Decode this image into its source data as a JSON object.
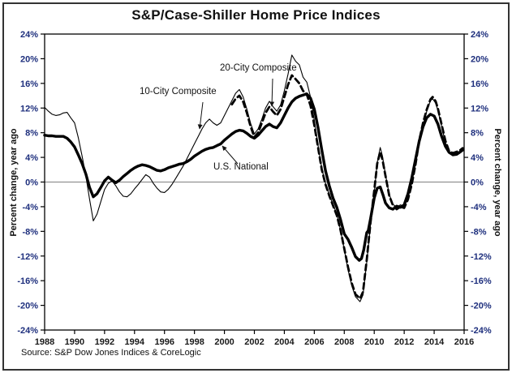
{
  "source": {
    "text": "Source: S&P Dow Jones Indices & CoreLogic"
  },
  "colors": {
    "line": "#000000",
    "zero_line": "#808080",
    "axis": "#000000",
    "y_tick_label": "#1e2f7d",
    "x_tick_label": "#1a1a1a",
    "frame_border": "#333333"
  },
  "chart_data": {
    "type": "line",
    "title": "S&P/Case-Shiller Home Price Indices",
    "x_axis": {
      "min": 1988,
      "max": 2016,
      "tick_step": 2,
      "tick_labels": [
        "1988",
        "1990",
        "1992",
        "1994",
        "1996",
        "1998",
        "2000",
        "2002",
        "2004",
        "2006",
        "2008",
        "2010",
        "2012",
        "2014",
        "2016"
      ]
    },
    "y_axis": {
      "label": "Percent change, year ago",
      "min": -24,
      "max": 24,
      "tick_step": 4,
      "tick_labels": [
        "24%",
        "20%",
        "16%",
        "12%",
        "8%",
        "4%",
        "0%",
        "-4%",
        "-8%",
        "-12%",
        "-16%",
        "-20%",
        "-24%"
      ],
      "mirrored_right": true
    },
    "zero_line": true,
    "grid": false,
    "legend": "inline-annotations",
    "series": [
      {
        "name": "10-City Composite",
        "style": "thin-solid",
        "points": [
          [
            1988.0,
            12.1
          ],
          [
            1988.25,
            11.5
          ],
          [
            1988.5,
            11.0
          ],
          [
            1988.75,
            10.8
          ],
          [
            1989.0,
            10.9
          ],
          [
            1989.25,
            11.2
          ],
          [
            1989.5,
            11.3
          ],
          [
            1989.75,
            10.4
          ],
          [
            1990.0,
            9.6
          ],
          [
            1990.25,
            7.2
          ],
          [
            1990.5,
            4.2
          ],
          [
            1990.75,
            1.0
          ],
          [
            1991.0,
            -2.8
          ],
          [
            1991.25,
            -6.3
          ],
          [
            1991.5,
            -5.2
          ],
          [
            1991.75,
            -3.2
          ],
          [
            1992.0,
            -1.2
          ],
          [
            1992.25,
            -0.2
          ],
          [
            1992.5,
            0.2
          ],
          [
            1992.75,
            -0.6
          ],
          [
            1993.0,
            -1.6
          ],
          [
            1993.25,
            -2.3
          ],
          [
            1993.5,
            -2.4
          ],
          [
            1993.75,
            -1.9
          ],
          [
            1994.0,
            -1.1
          ],
          [
            1994.25,
            -0.4
          ],
          [
            1994.5,
            0.4
          ],
          [
            1994.75,
            1.2
          ],
          [
            1995.0,
            0.8
          ],
          [
            1995.25,
            -0.2
          ],
          [
            1995.5,
            -1.0
          ],
          [
            1995.75,
            -1.6
          ],
          [
            1996.0,
            -1.7
          ],
          [
            1996.25,
            -1.2
          ],
          [
            1996.5,
            -0.4
          ],
          [
            1996.75,
            0.6
          ],
          [
            1997.0,
            1.6
          ],
          [
            1997.25,
            2.6
          ],
          [
            1997.5,
            3.8
          ],
          [
            1997.75,
            5.0
          ],
          [
            1998.0,
            6.2
          ],
          [
            1998.25,
            7.4
          ],
          [
            1998.5,
            8.6
          ],
          [
            1998.75,
            9.6
          ],
          [
            1999.0,
            10.2
          ],
          [
            1999.25,
            9.6
          ],
          [
            1999.5,
            9.2
          ],
          [
            1999.75,
            9.6
          ],
          [
            2000.0,
            10.8
          ],
          [
            2000.25,
            12.0
          ],
          [
            2000.5,
            13.2
          ],
          [
            2000.75,
            14.4
          ],
          [
            2001.0,
            15.0
          ],
          [
            2001.25,
            13.8
          ],
          [
            2001.5,
            11.8
          ],
          [
            2001.75,
            9.5
          ],
          [
            2002.0,
            7.8
          ],
          [
            2002.25,
            8.6
          ],
          [
            2002.5,
            10.2
          ],
          [
            2002.75,
            12.0
          ],
          [
            2003.0,
            13.1
          ],
          [
            2003.25,
            12.2
          ],
          [
            2003.5,
            11.5
          ],
          [
            2003.75,
            12.5
          ],
          [
            2004.0,
            14.8
          ],
          [
            2004.25,
            17.5
          ],
          [
            2004.5,
            20.6
          ],
          [
            2004.75,
            19.6
          ],
          [
            2005.0,
            19.0
          ],
          [
            2005.25,
            17.0
          ],
          [
            2005.5,
            16.2
          ],
          [
            2005.75,
            13.8
          ],
          [
            2006.0,
            10.0
          ],
          [
            2006.25,
            6.0
          ],
          [
            2006.5,
            2.2
          ],
          [
            2006.75,
            -0.2
          ],
          [
            2007.0,
            -2.0
          ],
          [
            2007.25,
            -3.6
          ],
          [
            2007.5,
            -5.2
          ],
          [
            2007.75,
            -7.8
          ],
          [
            2008.0,
            -11.0
          ],
          [
            2008.25,
            -14.2
          ],
          [
            2008.5,
            -16.8
          ],
          [
            2008.75,
            -18.6
          ],
          [
            2009.05,
            -19.4
          ],
          [
            2009.25,
            -18.3
          ],
          [
            2009.5,
            -13.0
          ],
          [
            2009.75,
            -7.0
          ],
          [
            2010.0,
            -1.8
          ],
          [
            2010.2,
            3.2
          ],
          [
            2010.4,
            5.6
          ],
          [
            2010.55,
            4.2
          ],
          [
            2010.75,
            1.2
          ],
          [
            2011.0,
            -2.0
          ],
          [
            2011.25,
            -3.6
          ],
          [
            2011.5,
            -4.1
          ],
          [
            2011.75,
            -3.7
          ],
          [
            2012.0,
            -4.0
          ],
          [
            2012.25,
            -2.6
          ],
          [
            2012.5,
            -0.2
          ],
          [
            2012.75,
            3.0
          ],
          [
            2013.0,
            6.5
          ],
          [
            2013.25,
            9.2
          ],
          [
            2013.5,
            11.4
          ],
          [
            2013.75,
            13.2
          ],
          [
            2013.9,
            13.5
          ],
          [
            2014.1,
            12.8
          ],
          [
            2014.25,
            11.6
          ],
          [
            2014.5,
            9.0
          ],
          [
            2014.75,
            6.4
          ],
          [
            2015.0,
            4.8
          ],
          [
            2015.25,
            4.4
          ],
          [
            2015.5,
            4.6
          ],
          [
            2015.75,
            4.9
          ],
          [
            2015.9,
            5.3
          ]
        ]
      },
      {
        "name": "20-City Composite",
        "style": "thick-dashed",
        "points": [
          [
            2000.5,
            12.6
          ],
          [
            2000.75,
            13.5
          ],
          [
            2001.0,
            14.0
          ],
          [
            2001.25,
            13.0
          ],
          [
            2001.5,
            11.2
          ],
          [
            2001.75,
            9.0
          ],
          [
            2002.0,
            7.3
          ],
          [
            2002.25,
            8.0
          ],
          [
            2002.5,
            9.6
          ],
          [
            2002.75,
            11.2
          ],
          [
            2003.0,
            12.2
          ],
          [
            2003.25,
            11.4
          ],
          [
            2003.5,
            10.8
          ],
          [
            2003.75,
            11.8
          ],
          [
            2004.0,
            13.8
          ],
          [
            2004.25,
            15.8
          ],
          [
            2004.5,
            17.3
          ],
          [
            2004.75,
            16.7
          ],
          [
            2005.0,
            16.0
          ],
          [
            2005.25,
            14.8
          ],
          [
            2005.5,
            14.2
          ],
          [
            2005.75,
            12.4
          ],
          [
            2006.0,
            9.2
          ],
          [
            2006.25,
            5.6
          ],
          [
            2006.5,
            2.0
          ],
          [
            2006.75,
            -0.4
          ],
          [
            2007.0,
            -2.2
          ],
          [
            2007.25,
            -3.8
          ],
          [
            2007.5,
            -5.4
          ],
          [
            2007.75,
            -7.8
          ],
          [
            2008.0,
            -10.8
          ],
          [
            2008.25,
            -13.8
          ],
          [
            2008.5,
            -16.4
          ],
          [
            2008.75,
            -18.2
          ],
          [
            2009.05,
            -18.9
          ],
          [
            2009.25,
            -17.8
          ],
          [
            2009.5,
            -12.6
          ],
          [
            2009.75,
            -6.6
          ],
          [
            2010.0,
            -1.4
          ],
          [
            2010.2,
            3.0
          ],
          [
            2010.4,
            4.9
          ],
          [
            2010.55,
            3.6
          ],
          [
            2010.75,
            1.0
          ],
          [
            2011.0,
            -2.2
          ],
          [
            2011.25,
            -3.8
          ],
          [
            2011.5,
            -4.4
          ],
          [
            2011.75,
            -4.0
          ],
          [
            2012.0,
            -4.2
          ],
          [
            2012.25,
            -2.8
          ],
          [
            2012.5,
            -0.4
          ],
          [
            2012.75,
            2.8
          ],
          [
            2013.0,
            6.7
          ],
          [
            2013.25,
            9.5
          ],
          [
            2013.5,
            11.7
          ],
          [
            2013.75,
            13.4
          ],
          [
            2013.9,
            13.8
          ],
          [
            2014.1,
            13.1
          ],
          [
            2014.25,
            11.9
          ],
          [
            2014.5,
            9.3
          ],
          [
            2014.75,
            6.7
          ],
          [
            2015.0,
            5.0
          ],
          [
            2015.25,
            4.7
          ],
          [
            2015.5,
            4.9
          ],
          [
            2015.75,
            5.2
          ],
          [
            2015.9,
            5.5
          ]
        ]
      },
      {
        "name": "U.S. National",
        "style": "thick-solid",
        "points": [
          [
            1988.0,
            7.6
          ],
          [
            1988.25,
            7.5
          ],
          [
            1988.5,
            7.5
          ],
          [
            1988.75,
            7.4
          ],
          [
            1989.0,
            7.4
          ],
          [
            1989.25,
            7.4
          ],
          [
            1989.5,
            7.1
          ],
          [
            1989.75,
            6.5
          ],
          [
            1990.0,
            5.7
          ],
          [
            1990.25,
            4.4
          ],
          [
            1990.5,
            3.0
          ],
          [
            1990.75,
            1.3
          ],
          [
            1991.0,
            -0.9
          ],
          [
            1991.25,
            -2.4
          ],
          [
            1991.5,
            -1.9
          ],
          [
            1991.75,
            -0.9
          ],
          [
            1992.0,
            0.2
          ],
          [
            1992.25,
            0.8
          ],
          [
            1992.5,
            0.3
          ],
          [
            1992.75,
            -0.1
          ],
          [
            1993.0,
            0.3
          ],
          [
            1993.25,
            0.9
          ],
          [
            1993.5,
            1.4
          ],
          [
            1993.75,
            1.9
          ],
          [
            1994.0,
            2.3
          ],
          [
            1994.25,
            2.6
          ],
          [
            1994.5,
            2.8
          ],
          [
            1994.75,
            2.7
          ],
          [
            1995.0,
            2.5
          ],
          [
            1995.25,
            2.2
          ],
          [
            1995.5,
            1.9
          ],
          [
            1995.75,
            1.8
          ],
          [
            1996.0,
            2.0
          ],
          [
            1996.25,
            2.3
          ],
          [
            1996.5,
            2.5
          ],
          [
            1996.75,
            2.7
          ],
          [
            1997.0,
            2.9
          ],
          [
            1997.25,
            3.0
          ],
          [
            1997.5,
            3.3
          ],
          [
            1997.75,
            3.7
          ],
          [
            1998.0,
            4.2
          ],
          [
            1998.25,
            4.6
          ],
          [
            1998.5,
            5.0
          ],
          [
            1998.75,
            5.3
          ],
          [
            1999.0,
            5.5
          ],
          [
            1999.25,
            5.6
          ],
          [
            1999.5,
            5.9
          ],
          [
            1999.75,
            6.2
          ],
          [
            2000.0,
            6.8
          ],
          [
            2000.25,
            7.3
          ],
          [
            2000.5,
            7.8
          ],
          [
            2000.75,
            8.2
          ],
          [
            2001.0,
            8.4
          ],
          [
            2001.25,
            8.3
          ],
          [
            2001.5,
            7.9
          ],
          [
            2001.75,
            7.4
          ],
          [
            2002.0,
            7.1
          ],
          [
            2002.25,
            7.6
          ],
          [
            2002.5,
            8.3
          ],
          [
            2002.75,
            9.0
          ],
          [
            2003.0,
            9.4
          ],
          [
            2003.25,
            9.0
          ],
          [
            2003.5,
            8.8
          ],
          [
            2003.75,
            9.6
          ],
          [
            2004.0,
            10.8
          ],
          [
            2004.25,
            12.0
          ],
          [
            2004.5,
            13.0
          ],
          [
            2004.75,
            13.6
          ],
          [
            2005.0,
            13.9
          ],
          [
            2005.25,
            14.1
          ],
          [
            2005.5,
            14.3
          ],
          [
            2005.75,
            13.6
          ],
          [
            2006.0,
            11.8
          ],
          [
            2006.25,
            8.8
          ],
          [
            2006.5,
            5.2
          ],
          [
            2006.75,
            1.8
          ],
          [
            2007.0,
            -0.6
          ],
          [
            2007.25,
            -2.6
          ],
          [
            2007.5,
            -4.1
          ],
          [
            2007.75,
            -6.1
          ],
          [
            2008.0,
            -8.4
          ],
          [
            2008.25,
            -9.3
          ],
          [
            2008.5,
            -10.6
          ],
          [
            2008.75,
            -12.1
          ],
          [
            2009.0,
            -12.7
          ],
          [
            2009.15,
            -12.4
          ],
          [
            2009.3,
            -11.0
          ],
          [
            2009.5,
            -8.2
          ],
          [
            2009.6,
            -7.9
          ],
          [
            2009.75,
            -6.0
          ],
          [
            2010.0,
            -2.6
          ],
          [
            2010.2,
            -1.0
          ],
          [
            2010.4,
            -0.8
          ],
          [
            2010.6,
            -2.2
          ],
          [
            2010.75,
            -3.4
          ],
          [
            2011.0,
            -4.2
          ],
          [
            2011.25,
            -4.4
          ],
          [
            2011.5,
            -3.9
          ],
          [
            2011.75,
            -4.1
          ],
          [
            2012.0,
            -3.7
          ],
          [
            2012.25,
            -1.9
          ],
          [
            2012.5,
            0.6
          ],
          [
            2012.75,
            3.6
          ],
          [
            2013.0,
            6.6
          ],
          [
            2013.25,
            8.9
          ],
          [
            2013.5,
            10.4
          ],
          [
            2013.75,
            11.0
          ],
          [
            2014.0,
            10.7
          ],
          [
            2014.25,
            9.4
          ],
          [
            2014.5,
            7.4
          ],
          [
            2014.75,
            5.8
          ],
          [
            2015.0,
            4.8
          ],
          [
            2015.25,
            4.4
          ],
          [
            2015.5,
            4.5
          ],
          [
            2015.75,
            4.9
          ],
          [
            2015.9,
            5.2
          ]
        ]
      }
    ]
  }
}
